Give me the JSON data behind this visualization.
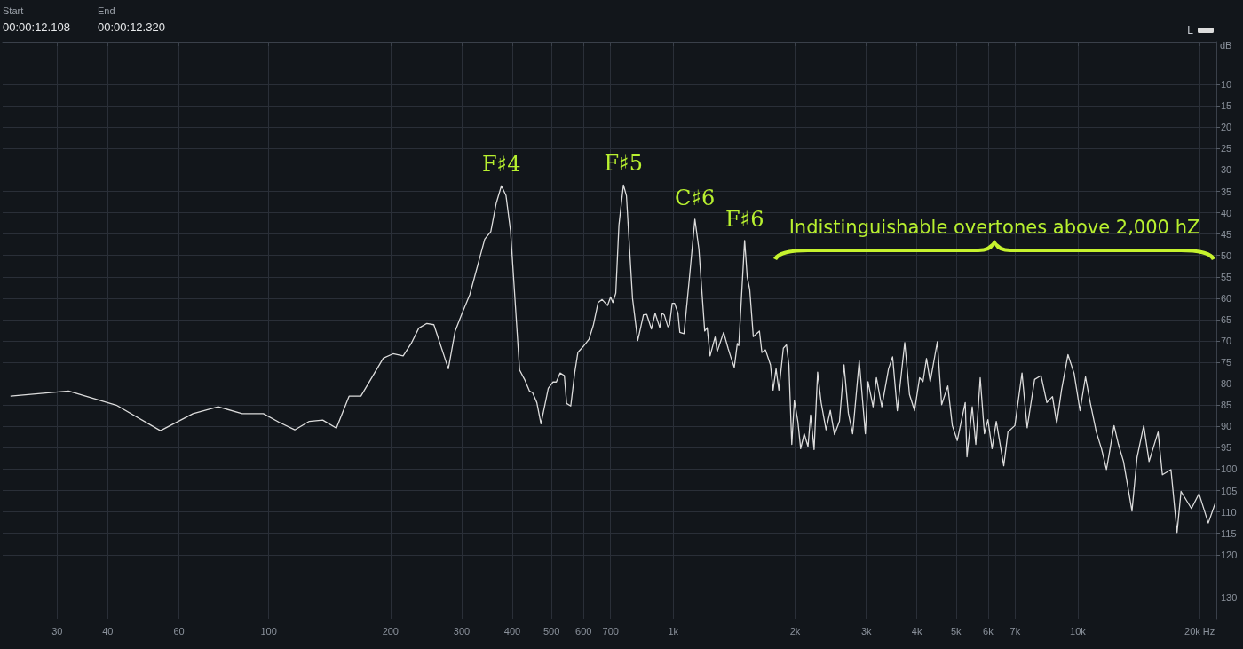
{
  "chart_data": {
    "type": "line",
    "ylabel": "dB",
    "annotations": [
      "Start",
      "00:00:12.108",
      "End",
      "00:00:12.320",
      "Indistinguishable overtones above 2,000 hZ",
      {
        "text": "F♯4",
        "x": 376,
        "y": 33.7
      },
      {
        "text": "F♯5",
        "x": 753,
        "y": 33.5
      },
      {
        "text": "C♯6",
        "x": 1131,
        "y": 41.5
      },
      {
        "text": "F♯6",
        "x": 1501,
        "y": 46.5
      }
    ],
    "log": "x",
    "xlim": [
      22,
      22000
    ],
    "xticks": [
      30,
      40,
      60,
      100,
      200,
      300,
      400,
      500,
      600,
      700,
      {
        "value": 1000,
        "label": "1k"
      },
      {
        "value": 2000,
        "label": "2k"
      },
      {
        "value": 3000,
        "label": "3k"
      },
      {
        "value": 4000,
        "label": "4k"
      },
      {
        "value": 5000,
        "label": "5k"
      },
      {
        "value": 6000,
        "label": "6k"
      },
      {
        "value": 7000,
        "label": "7k"
      },
      {
        "value": 10000,
        "label": "10k"
      },
      {
        "value": 20000,
        "label": "20k Hz"
      }
    ],
    "ylim": [
      135,
      0
    ],
    "yticks": [
      10,
      15,
      20,
      25,
      30,
      35,
      40,
      45,
      50,
      55,
      60,
      65,
      70,
      75,
      80,
      85,
      90,
      95,
      100,
      105,
      110,
      115,
      120,
      130
    ],
    "grid": true,
    "legend": "top right",
    "x": [
      23,
      32,
      42,
      54,
      65,
      75,
      86,
      97,
      106,
      116,
      126,
      136,
      147,
      158,
      169,
      192,
      203,
      215,
      225,
      235,
      246,
      256,
      278,
      289,
      301,
      314,
      342,
      354,
      365,
      376,
      386,
      396,
      417,
      429,
      441,
      449,
      460,
      471,
      491,
      504,
      514,
      525,
      538,
      545,
      558,
      571,
      581,
      599,
      619,
      635,
      652,
      667,
      688,
      700,
      709,
      721,
      734,
      753,
      766,
      793,
      817,
      844,
      860,
      883,
      902,
      926,
      938,
      950,
      970,
      979,
      994,
      1008,
      1027,
      1038,
      1063,
      1099,
      1131,
      1157,
      1196,
      1213,
      1233,
      1269,
      1284,
      1332,
      1366,
      1388,
      1415,
      1440,
      1452,
      1501,
      1523,
      1545,
      1577,
      1633,
      1656,
      1690,
      1739,
      1765,
      1795,
      1824,
      1871,
      1904,
      1931,
      1963,
      1992,
      2032,
      2065,
      2107,
      2153,
      2185,
      2229,
      2274,
      2320,
      2386,
      2444,
      2503,
      2575,
      2643,
      2709,
      2776,
      2882,
      2984,
      3030,
      3118,
      3178,
      3277,
      3405,
      3484,
      3579,
      3734,
      3836,
      3948,
      4063,
      4143,
      4226,
      4317,
      4494,
      4606,
      4771,
      4895,
      5035,
      5268,
      5321,
      5482,
      5595,
      5737,
      5876,
      5994,
      6137,
      6286,
      6560,
      6718,
      6988,
      7278,
      7494,
      7820,
      8110,
      8383,
      8656,
      8867,
      9112,
      9454,
      9789,
      10125,
      10445,
      10730,
      11110,
      11440,
      11770,
      12290,
      12600,
      12970,
      13610,
      14010,
      14550,
      15000,
      15790,
      16180,
      16990,
      17590,
      17990,
      19090,
      19930,
      21010,
      21850
    ],
    "series": [
      {
        "name": "L",
        "color": "#dcdcdc",
        "values": [
          82.9,
          81.7,
          85,
          91,
          87,
          85.4,
          87,
          87,
          89,
          90.8,
          88.8,
          88.5,
          90.4,
          82.9,
          82.9,
          74,
          73,
          73.5,
          70.6,
          67,
          65.9,
          66.2,
          76.5,
          67.7,
          63.4,
          59.2,
          46.2,
          44.4,
          37.8,
          33.7,
          36,
          44.2,
          76.8,
          79,
          81.7,
          82.1,
          84.4,
          89.4,
          81.1,
          79.6,
          79.6,
          77.5,
          78.1,
          84.6,
          85.2,
          77.3,
          72.7,
          71.3,
          69.6,
          66.2,
          61,
          60.3,
          61.7,
          59.7,
          61,
          58.8,
          42.9,
          33.5,
          36,
          60,
          69.9,
          63.9,
          63.8,
          67.2,
          63.5,
          66.9,
          63.5,
          63.9,
          66.7,
          66.2,
          61.2,
          61.2,
          63.5,
          68,
          68.3,
          54.2,
          41.5,
          48.5,
          67.7,
          66.9,
          73.5,
          69.1,
          72.5,
          68,
          71.7,
          73.8,
          76.2,
          70.6,
          71.1,
          46.5,
          55,
          57.9,
          69,
          67.7,
          72.7,
          72.1,
          75.6,
          81.5,
          76.5,
          81.5,
          71.7,
          70.9,
          75.6,
          94.2,
          83.9,
          88.8,
          95.2,
          91.7,
          94.7,
          87.3,
          95.4,
          77.3,
          84.4,
          90.8,
          86.2,
          91.9,
          88.8,
          75.6,
          86.9,
          91.7,
          74.6,
          91.7,
          79.5,
          85.4,
          78.6,
          85.4,
          76.5,
          73.7,
          86.3,
          70.4,
          82.5,
          86.3,
          78.6,
          79.5,
          74.1,
          79.5,
          70.2,
          84.9,
          80.5,
          89.8,
          93.3,
          84.4,
          97.1,
          85.4,
          94.2,
          78.6,
          91.7,
          88.4,
          95.2,
          88.8,
          99.2,
          91.3,
          89.8,
          77.5,
          90.3,
          79,
          78.1,
          84.4,
          83,
          89.3,
          81.5,
          73.2,
          77.6,
          86.3,
          78.4,
          84.4,
          91.3,
          95.2,
          100.1,
          89.8,
          94.2,
          98.2,
          109.8,
          97.2,
          89.8,
          98.2,
          91.3,
          101.3,
          100.1,
          114.8,
          105.2,
          109.2,
          105.7,
          112.6,
          108
        ]
      }
    ]
  }
}
